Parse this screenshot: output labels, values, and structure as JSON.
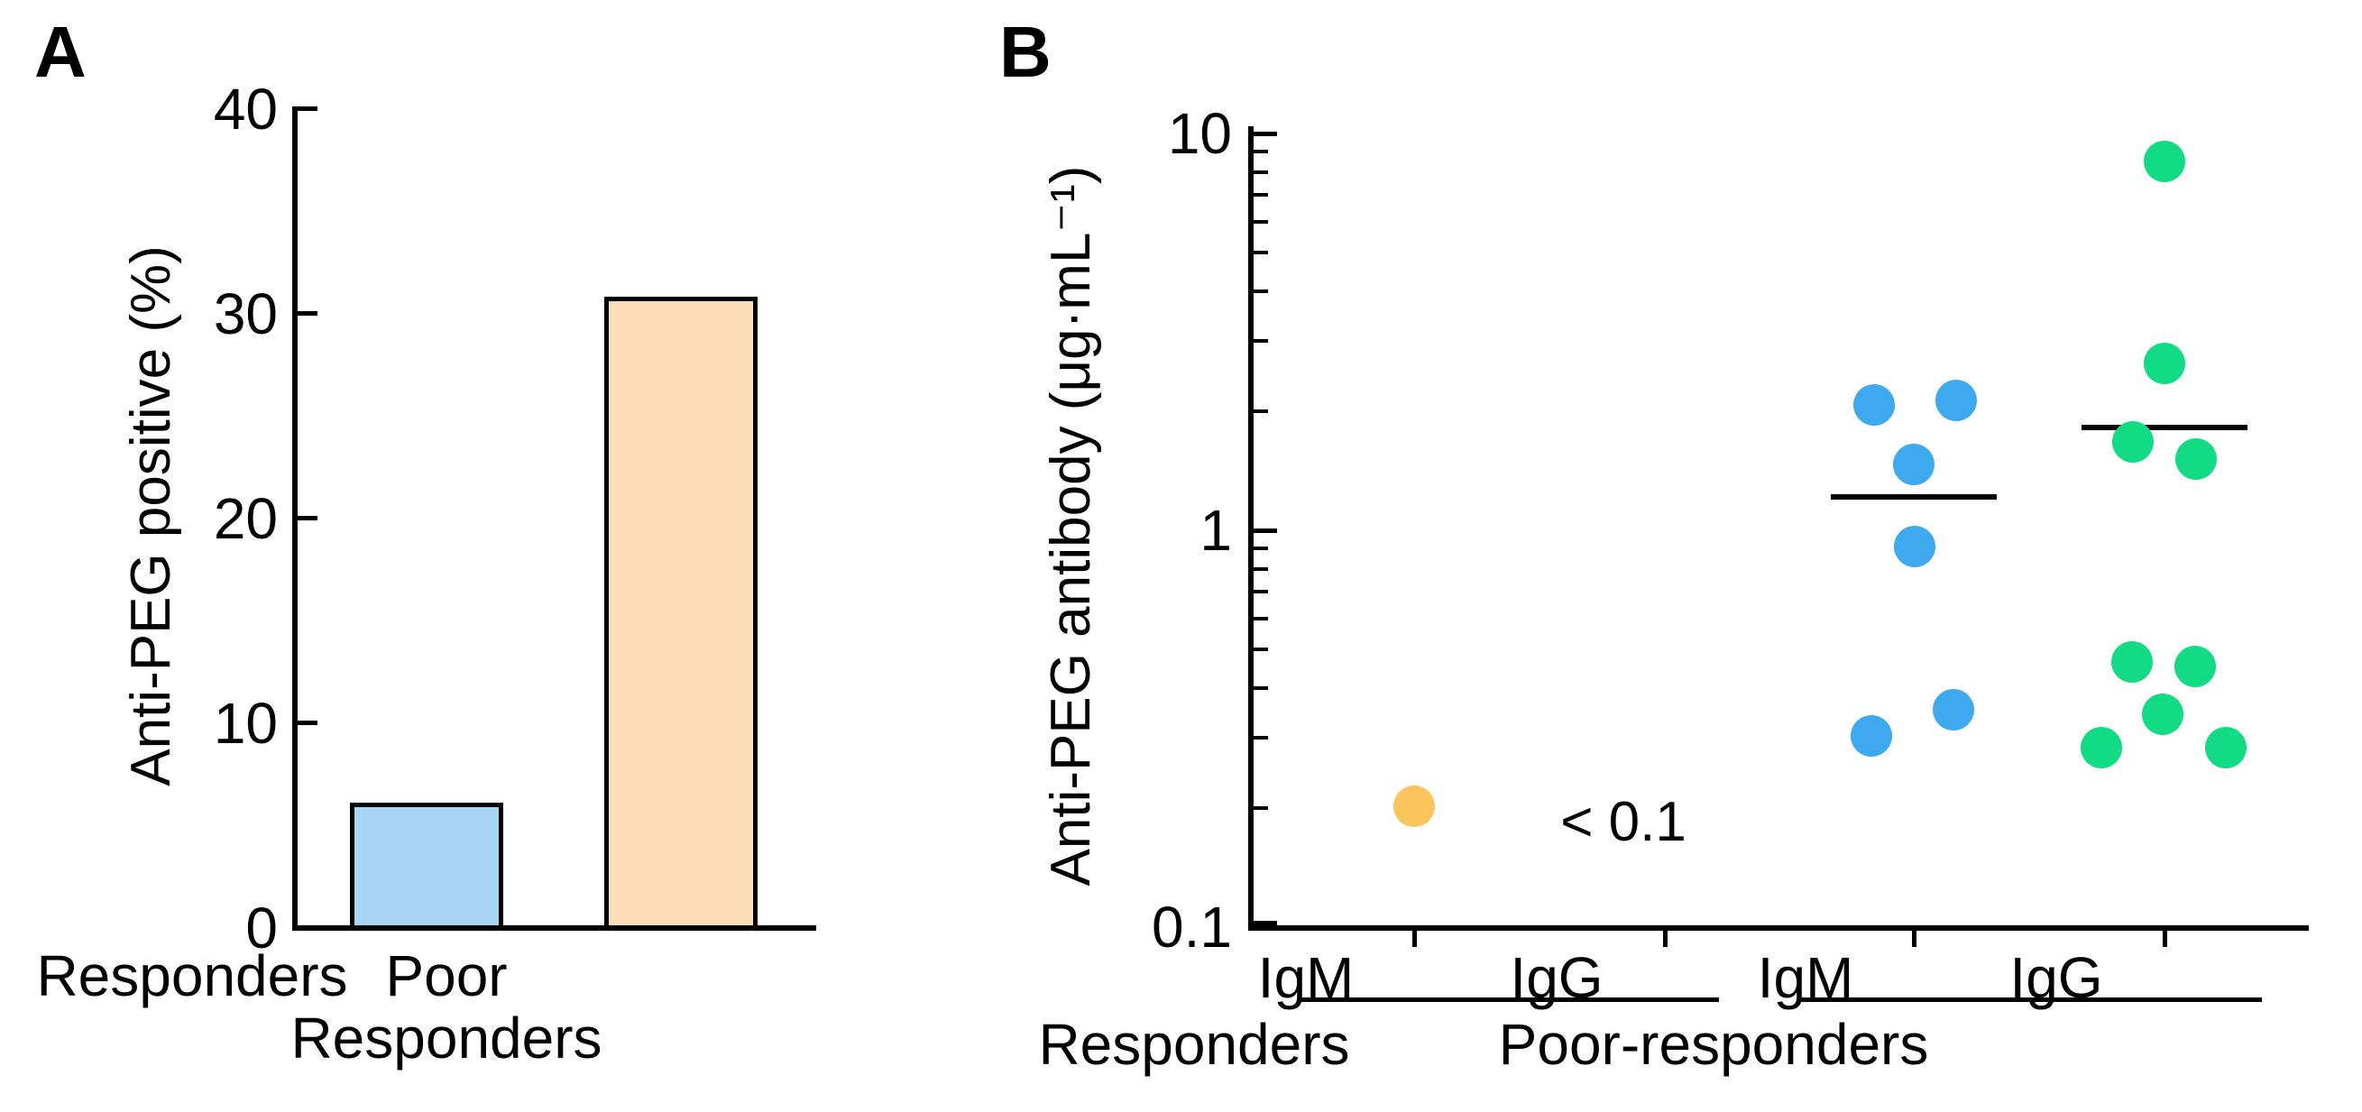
{
  "figure": {
    "panel_a": {
      "label": "A",
      "ylabel": "Anti-PEG positive (%)"
    },
    "panel_b": {
      "label": "B",
      "ylabel": "Anti-PEG antibody (μg·mL⁻¹)"
    }
  },
  "chart_data": [
    {
      "type": "bar",
      "panel": "A",
      "title": "",
      "xlabel": "",
      "ylabel": "Anti-PEG positive (%)",
      "categories": [
        "Responders",
        "Poor\nResponders"
      ],
      "values": [
        6,
        30.7
      ],
      "bar_colors": [
        "#a9d7f3",
        "#fbddb8"
      ],
      "bar_border_color": "#000000",
      "ylim": [
        0,
        40
      ],
      "yticks": [
        0,
        10,
        20,
        30,
        40
      ],
      "ytick_labels": [
        "0",
        "10",
        "20",
        "30",
        "40"
      ],
      "grid": false,
      "legend": false
    },
    {
      "type": "scatter",
      "panel": "B",
      "title": "",
      "xlabel": "",
      "ylabel": "Anti-PEG antibody (μg·mL⁻¹)",
      "yscale": "log",
      "ylim": [
        0.1,
        10
      ],
      "yticks": [
        0.1,
        1,
        10
      ],
      "ytick_labels": [
        "0.1",
        "1",
        "10"
      ],
      "grid": false,
      "legend": false,
      "group_labels": [
        "Responders",
        "Poor-responders"
      ],
      "groups": [
        {
          "group": "Responders",
          "subgroup": "IgM",
          "color": "#fbc55e",
          "points": [
            0.2
          ],
          "offsets": [
            0
          ],
          "median_line": null,
          "annotation": null
        },
        {
          "group": "Responders",
          "subgroup": "IgG",
          "color": null,
          "points": [],
          "offsets": [],
          "median_line": null,
          "annotation": "< 0.1"
        },
        {
          "group": "Poor-responders",
          "subgroup": "IgM",
          "color": "#3fa9f0",
          "points": [
            2.05,
            2.1,
            1.45,
            0.9,
            0.3,
            0.35
          ],
          "offsets": [
            -44,
            47,
            0,
            1,
            -47,
            44
          ],
          "median_line": 1.2,
          "annotation": null
        },
        {
          "group": "Poor-responders",
          "subgroup": "IgG",
          "color": "#12db84",
          "points": [
            8.4,
            2.6,
            1.65,
            1.5,
            0.46,
            0.45,
            0.34,
            0.28,
            0.28
          ],
          "offsets": [
            0,
            0,
            -35,
            35,
            -36,
            34,
            -2,
            -70,
            68
          ],
          "median_line": 1.8,
          "annotation": null
        }
      ]
    }
  ]
}
